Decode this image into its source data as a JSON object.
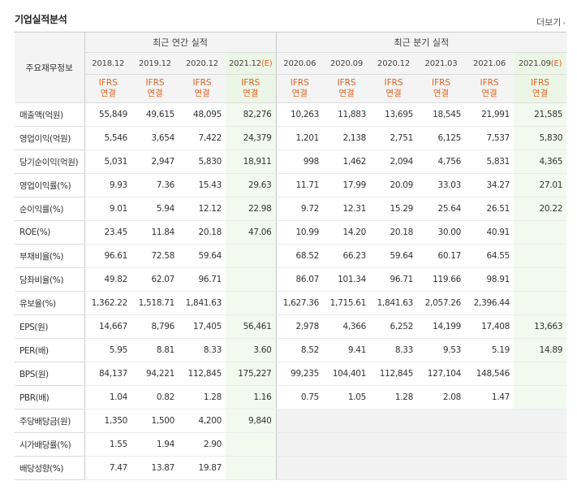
{
  "header": {
    "title": "기업실적분석",
    "more_label": "더보기"
  },
  "table": {
    "corner_label": "주요재무정보",
    "annual_group": "최근 연간 실적",
    "quarter_group": "최근 분기 실적",
    "est_mark": "(E)",
    "ifrs_line1": "IFRS",
    "ifrs_line2": "연결",
    "periods": [
      {
        "label": "2018.12",
        "est": false
      },
      {
        "label": "2019.12",
        "est": false
      },
      {
        "label": "2020.12",
        "est": false
      },
      {
        "label": "2021.12",
        "est": true
      },
      {
        "label": "2020.06",
        "est": false
      },
      {
        "label": "2020.09",
        "est": false
      },
      {
        "label": "2020.12",
        "est": false
      },
      {
        "label": "2021.03",
        "est": false
      },
      {
        "label": "2021.06",
        "est": false
      },
      {
        "label": "2021.09",
        "est": true
      }
    ],
    "rows": [
      {
        "label": "매출액(억원)",
        "values": [
          "55,849",
          "49,615",
          "48,095",
          "82,276",
          "10,263",
          "11,883",
          "13,695",
          "18,545",
          "21,991",
          "21,585"
        ]
      },
      {
        "label": "영업이익(억원)",
        "values": [
          "5,546",
          "3,654",
          "7,422",
          "24,379",
          "1,201",
          "2,138",
          "2,751",
          "6,125",
          "7,537",
          "5,830"
        ]
      },
      {
        "label": "당기순이익(억원)",
        "values": [
          "5,031",
          "2,947",
          "5,830",
          "18,911",
          "998",
          "1,462",
          "2,094",
          "4,756",
          "5,831",
          "4,365"
        ]
      },
      {
        "label": "영업이익률(%)",
        "values": [
          "9.93",
          "7.36",
          "15.43",
          "29.63",
          "11.71",
          "17.99",
          "20.09",
          "33.03",
          "34.27",
          "27.01"
        ]
      },
      {
        "label": "순이익률(%)",
        "values": [
          "9.01",
          "5.94",
          "12.12",
          "22.98",
          "9.72",
          "12.31",
          "15.29",
          "25.64",
          "26.51",
          "20.22"
        ]
      },
      {
        "label": "ROE(%)",
        "values": [
          "23.45",
          "11.84",
          "20.18",
          "47.06",
          "10.99",
          "14.20",
          "20.18",
          "30.00",
          "40.91",
          ""
        ]
      },
      {
        "label": "부채비율(%)",
        "values": [
          "96.61",
          "72.58",
          "59.64",
          "",
          "68.52",
          "66.23",
          "59.64",
          "60.17",
          "64.55",
          ""
        ]
      },
      {
        "label": "당좌비율(%)",
        "values": [
          "49.82",
          "62.07",
          "96.71",
          "",
          "86.07",
          "101.34",
          "96.71",
          "119.66",
          "98.91",
          ""
        ]
      },
      {
        "label": "유보율(%)",
        "values": [
          "1,362.22",
          "1,518.71",
          "1,841.63",
          "",
          "1,627.36",
          "1,715.61",
          "1,841.63",
          "2,057.26",
          "2,396.44",
          ""
        ]
      },
      {
        "label": "EPS(원)",
        "values": [
          "14,667",
          "8,796",
          "17,405",
          "56,461",
          "2,978",
          "4,366",
          "6,252",
          "14,199",
          "17,408",
          "13,663"
        ]
      },
      {
        "label": "PER(배)",
        "values": [
          "5.95",
          "8.81",
          "8.33",
          "3.60",
          "8.52",
          "9.41",
          "8.33",
          "9.53",
          "5.19",
          "14.89"
        ]
      },
      {
        "label": "BPS(원)",
        "values": [
          "84,137",
          "94,221",
          "112,845",
          "175,227",
          "99,235",
          "104,401",
          "112,845",
          "127,104",
          "148,546",
          ""
        ]
      },
      {
        "label": "PBR(배)",
        "values": [
          "1.04",
          "0.82",
          "1.28",
          "1.16",
          "0.75",
          "1.05",
          "1.28",
          "2.08",
          "1.47",
          ""
        ]
      },
      {
        "label": "주당배당금(원)",
        "values": [
          "1,350",
          "1,500",
          "4,200",
          "9,840",
          "",
          "",
          "",
          "",
          "",
          ""
        ]
      },
      {
        "label": "시가배당률(%)",
        "values": [
          "1.55",
          "1.94",
          "2.90",
          "",
          "",
          "",
          "",
          "",
          "",
          ""
        ]
      },
      {
        "label": "배당성향(%)",
        "values": [
          "7.47",
          "13.87",
          "19.87",
          "",
          "",
          "",
          "",
          "",
          "",
          ""
        ]
      }
    ]
  }
}
